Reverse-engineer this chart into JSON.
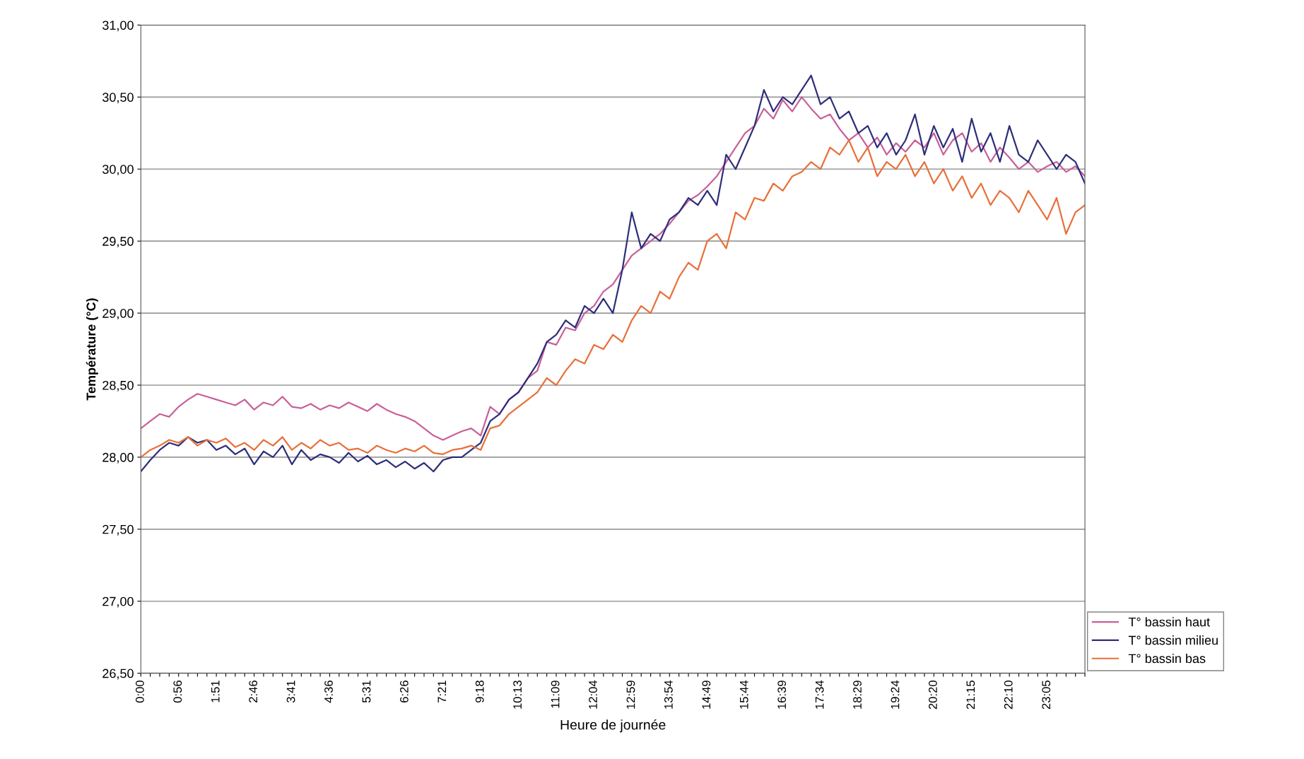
{
  "chart_data": {
    "type": "line",
    "xlabel": "Heure de journée",
    "ylabel": "Température (°C)",
    "categories": [
      "0:00",
      null,
      null,
      null,
      "0:56",
      null,
      null,
      null,
      "1:51",
      null,
      null,
      null,
      "2:46",
      null,
      null,
      null,
      "3:41",
      null,
      null,
      null,
      "4:36",
      null,
      null,
      null,
      "5:31",
      null,
      null,
      null,
      "6:26",
      null,
      null,
      null,
      "7:21",
      null,
      null,
      null,
      "9:18",
      null,
      null,
      null,
      "10:13",
      null,
      null,
      null,
      "11:09",
      null,
      null,
      null,
      "12:04",
      null,
      null,
      null,
      "12:59",
      null,
      null,
      null,
      "13:54",
      null,
      null,
      null,
      "14:49",
      null,
      null,
      null,
      "15:44",
      null,
      null,
      null,
      "16:39",
      null,
      null,
      null,
      "17:34",
      null,
      null,
      null,
      "18:29",
      null,
      null,
      null,
      "19:24",
      null,
      null,
      null,
      "20:20",
      null,
      null,
      null,
      "21:15",
      null,
      null,
      null,
      "22:10",
      null,
      null,
      null,
      "23:05",
      null,
      null,
      null,
      null
    ],
    "series": [
      {
        "name": "T° bassin haut",
        "color": "#c8609a",
        "values": [
          28.2,
          28.25,
          28.3,
          28.28,
          28.35,
          28.4,
          28.44,
          28.42,
          28.4,
          28.38,
          28.36,
          28.4,
          28.33,
          28.38,
          28.36,
          28.42,
          28.35,
          28.34,
          28.37,
          28.33,
          28.36,
          28.34,
          28.38,
          28.35,
          28.32,
          28.37,
          28.33,
          28.3,
          28.28,
          28.25,
          28.2,
          28.15,
          28.12,
          28.15,
          28.18,
          28.2,
          28.15,
          28.35,
          28.3,
          28.4,
          28.45,
          28.55,
          28.6,
          28.8,
          28.78,
          28.9,
          28.88,
          29.0,
          29.05,
          29.15,
          29.2,
          29.3,
          29.4,
          29.45,
          29.5,
          29.55,
          29.62,
          29.7,
          29.78,
          29.82,
          29.88,
          29.95,
          30.05,
          30.15,
          30.25,
          30.3,
          30.42,
          30.35,
          30.48,
          30.4,
          30.5,
          30.42,
          30.35,
          30.38,
          30.28,
          30.2,
          30.25,
          30.15,
          30.22,
          30.1,
          30.18,
          30.12,
          30.2,
          30.15,
          30.25,
          30.1,
          30.2,
          30.25,
          30.12,
          30.18,
          30.05,
          30.15,
          30.08,
          30.0,
          30.05,
          29.98,
          30.02,
          30.05,
          29.98,
          30.02,
          29.95
        ]
      },
      {
        "name": "T° bassin milieu",
        "color": "#2e2e7a",
        "values": [
          27.9,
          27.98,
          28.05,
          28.1,
          28.08,
          28.14,
          28.1,
          28.12,
          28.05,
          28.08,
          28.02,
          28.06,
          27.95,
          28.04,
          28.0,
          28.08,
          27.95,
          28.05,
          27.98,
          28.02,
          28.0,
          27.96,
          28.03,
          27.97,
          28.01,
          27.95,
          27.98,
          27.93,
          27.97,
          27.92,
          27.96,
          27.9,
          27.98,
          28.0,
          28.0,
          28.05,
          28.1,
          28.25,
          28.3,
          28.4,
          28.45,
          28.55,
          28.65,
          28.8,
          28.85,
          28.95,
          28.9,
          29.05,
          29.0,
          29.1,
          29.0,
          29.3,
          29.7,
          29.45,
          29.55,
          29.5,
          29.65,
          29.7,
          29.8,
          29.75,
          29.85,
          29.75,
          30.1,
          30.0,
          30.15,
          30.3,
          30.55,
          30.4,
          30.5,
          30.45,
          30.55,
          30.65,
          30.45,
          30.5,
          30.35,
          30.4,
          30.25,
          30.3,
          30.15,
          30.25,
          30.1,
          30.2,
          30.38,
          30.1,
          30.3,
          30.15,
          30.28,
          30.05,
          30.35,
          30.12,
          30.25,
          30.05,
          30.3,
          30.1,
          30.05,
          30.2,
          30.1,
          30.0,
          30.1,
          30.05,
          29.9
        ]
      },
      {
        "name": "T° bassin bas",
        "color": "#e8703a",
        "values": [
          28.0,
          28.05,
          28.08,
          28.12,
          28.1,
          28.14,
          28.08,
          28.12,
          28.1,
          28.13,
          28.07,
          28.1,
          28.05,
          28.12,
          28.08,
          28.14,
          28.05,
          28.1,
          28.06,
          28.12,
          28.08,
          28.1,
          28.05,
          28.06,
          28.03,
          28.08,
          28.05,
          28.03,
          28.06,
          28.04,
          28.08,
          28.03,
          28.02,
          28.05,
          28.06,
          28.08,
          28.05,
          28.2,
          28.22,
          28.3,
          28.35,
          28.4,
          28.45,
          28.55,
          28.5,
          28.6,
          28.68,
          28.65,
          28.78,
          28.75,
          28.85,
          28.8,
          28.95,
          29.05,
          29.0,
          29.15,
          29.1,
          29.25,
          29.35,
          29.3,
          29.5,
          29.55,
          29.45,
          29.7,
          29.65,
          29.8,
          29.78,
          29.9,
          29.85,
          29.95,
          29.98,
          30.05,
          30.0,
          30.15,
          30.1,
          30.2,
          30.05,
          30.15,
          29.95,
          30.05,
          30.0,
          30.1,
          29.95,
          30.05,
          29.9,
          30.0,
          29.85,
          29.95,
          29.8,
          29.9,
          29.75,
          29.85,
          29.8,
          29.7,
          29.85,
          29.75,
          29.65,
          29.8,
          29.55,
          29.7,
          29.75
        ]
      }
    ],
    "ylim": [
      26.5,
      31.0
    ],
    "yticks": [
      {
        "value": 26.5,
        "label": "26,50"
      },
      {
        "value": 27.0,
        "label": "27,00"
      },
      {
        "value": 27.5,
        "label": "27,50"
      },
      {
        "value": 28.0,
        "label": "28,00"
      },
      {
        "value": 28.5,
        "label": "28,50"
      },
      {
        "value": 29.0,
        "label": "29,00"
      },
      {
        "value": 29.5,
        "label": "29,50"
      },
      {
        "value": 30.0,
        "label": "30,00"
      },
      {
        "value": 30.5,
        "label": "30,50"
      },
      {
        "value": 31.0,
        "label": "31,00"
      }
    ],
    "grid": "y",
    "legend": "bottom right",
    "marker": "none",
    "line_style": "solid"
  }
}
